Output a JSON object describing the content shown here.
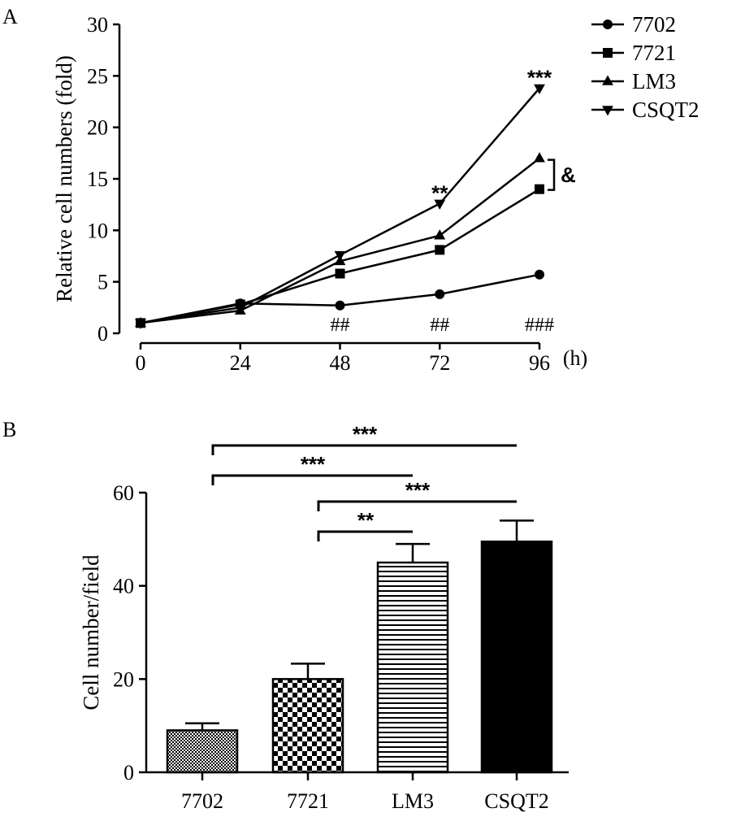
{
  "chart_data": [
    {
      "panel": "A",
      "type": "line",
      "title": "",
      "ylabel": "Relative cell numbers (fold)",
      "xlabel": "",
      "x_unit": "(h)",
      "x": [
        0,
        24,
        48,
        72,
        96
      ],
      "x_tick_labels": [
        "0",
        "24",
        "48",
        "72",
        "96"
      ],
      "xlim": [
        0,
        96
      ],
      "ylim": [
        0,
        30
      ],
      "y_ticks": [
        0,
        5,
        10,
        15,
        20,
        25,
        30
      ],
      "legend_position": "top-right",
      "series": [
        {
          "name": "7702",
          "marker": "circle",
          "values": [
            1,
            2.9,
            2.7,
            3.8,
            5.7
          ]
        },
        {
          "name": "7721",
          "marker": "square",
          "values": [
            1,
            2.8,
            5.8,
            8.1,
            14
          ]
        },
        {
          "name": "LM3",
          "marker": "triangle-up",
          "values": [
            1,
            2.2,
            7.0,
            9.5,
            17
          ]
        },
        {
          "name": "CSQT2",
          "marker": "triangle-down",
          "values": [
            1,
            2.5,
            7.6,
            12.6,
            23.8
          ]
        }
      ],
      "annotations": [
        {
          "text": "##",
          "x": 48,
          "near": "7702"
        },
        {
          "text": "##",
          "x": 72,
          "near": "7702"
        },
        {
          "text": "###",
          "x": 96,
          "near": "7702"
        },
        {
          "text": "**",
          "x": 72,
          "near": "CSQT2"
        },
        {
          "text": "***",
          "x": 96,
          "near": "CSQT2"
        },
        {
          "text": "&",
          "x": 96,
          "near": "7721-LM3"
        }
      ]
    },
    {
      "panel": "B",
      "type": "bar",
      "title": "",
      "ylabel": "Cell number/field",
      "xlabel": "",
      "categories": [
        "7702",
        "7721",
        "LM3",
        "CSQT2"
      ],
      "values": [
        9,
        20,
        45,
        49.5
      ],
      "errors": [
        1.5,
        3.3,
        4.0,
        4.5
      ],
      "fills": [
        "fine-checker",
        "coarse-checker",
        "horizontal-stripes",
        "solid-black"
      ],
      "ylim": [
        0,
        60
      ],
      "y_ticks": [
        0,
        20,
        40,
        60
      ],
      "significance": [
        {
          "from": "7702",
          "to": "CSQT2",
          "label": "***"
        },
        {
          "from": "7702",
          "to": "LM3",
          "label": "***"
        },
        {
          "from": "7721",
          "to": "CSQT2",
          "label": "***"
        },
        {
          "from": "7721",
          "to": "LM3",
          "label": "**"
        }
      ]
    }
  ]
}
